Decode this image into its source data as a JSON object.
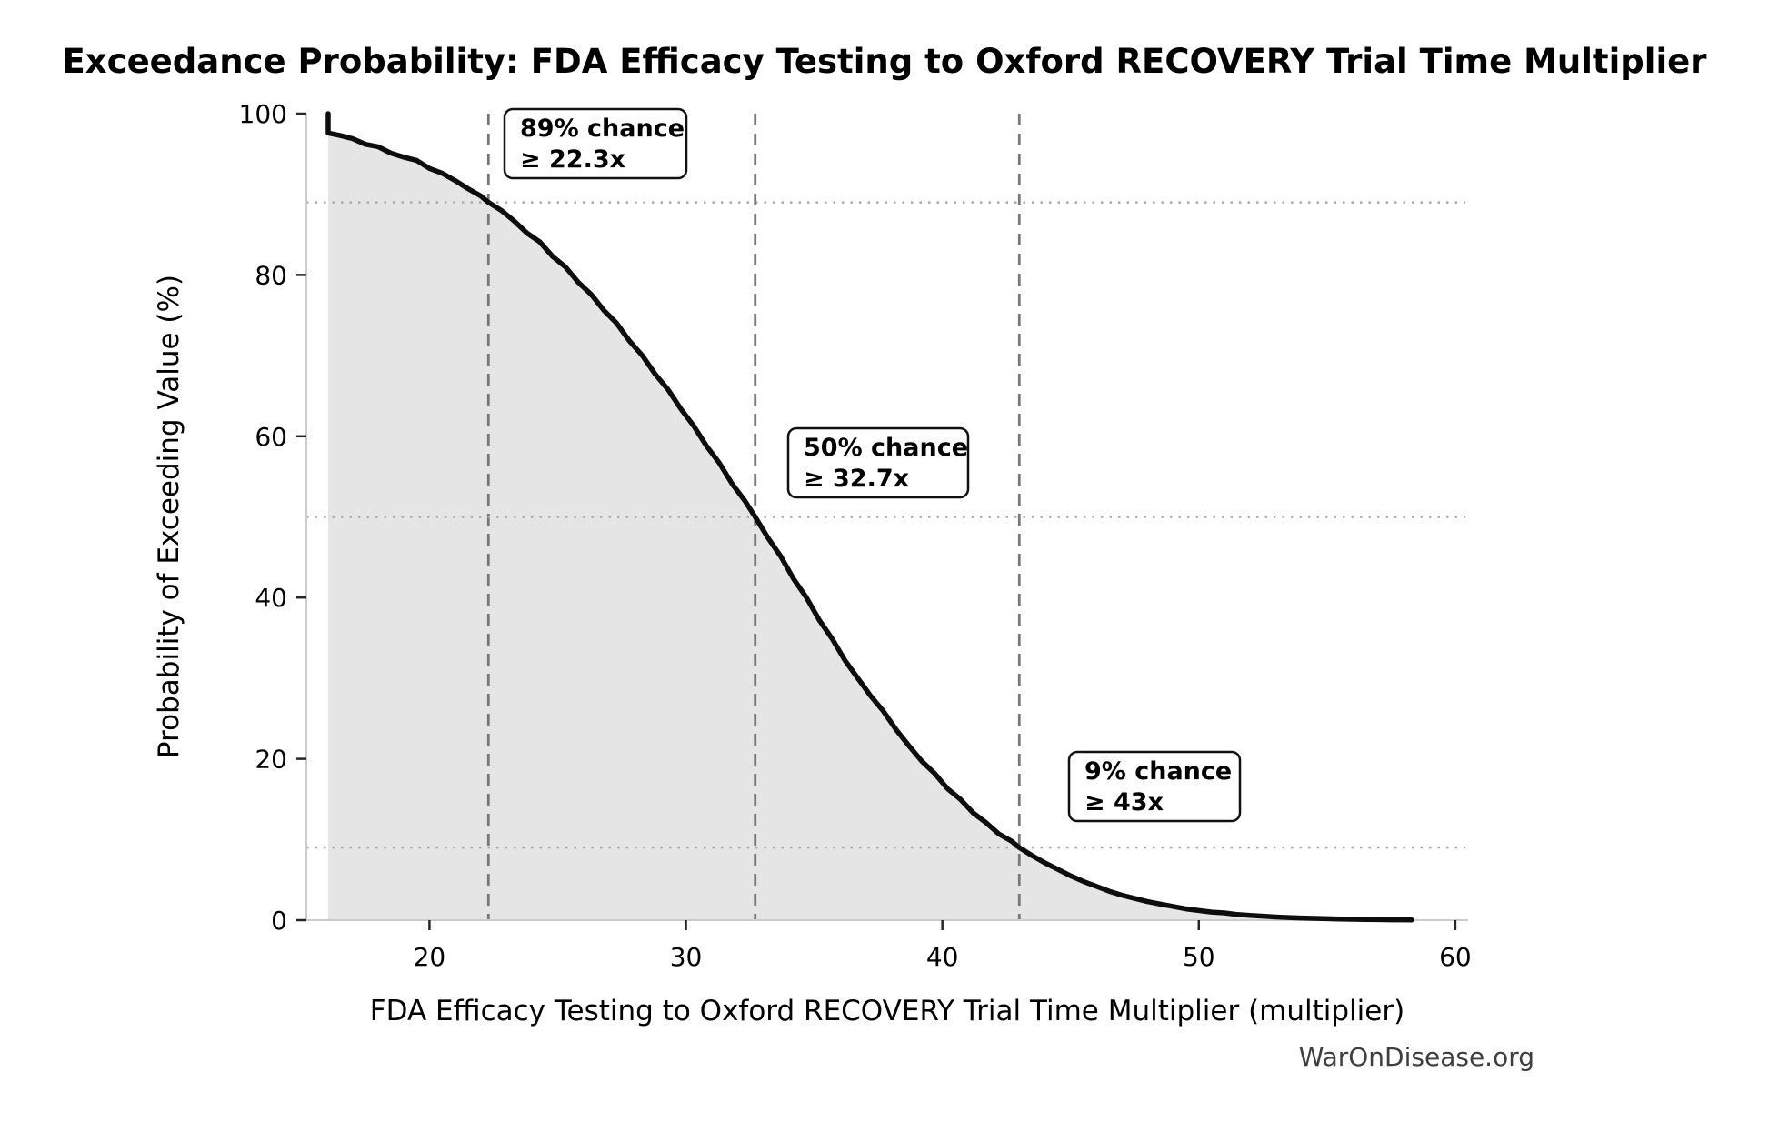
{
  "chart_data": {
    "type": "area",
    "title": "Exceedance Probability: FDA Efficacy Testing to Oxford RECOVERY Trial Time Multiplier",
    "xlabel": "FDA Efficacy Testing to Oxford RECOVERY Trial Time Multiplier (multiplier)",
    "ylabel": "Probability of Exceeding Value (%)",
    "watermark": "WarOnDisease.org",
    "xlim": [
      15.2,
      60.5
    ],
    "ylim": [
      0,
      100
    ],
    "x_ticks": [
      20,
      30,
      40,
      50,
      60
    ],
    "y_ticks": [
      0,
      20,
      40,
      60,
      80,
      100
    ],
    "legend": "none",
    "grid": {
      "horizontal": "dotted at annotation probabilities",
      "vertical": "dashed at annotation multipliers"
    },
    "colors": {
      "curve": "#0d0d0d",
      "fill": "#e5e5e5",
      "dashed_line": "#787878",
      "dotted_line": "#aaaaaa",
      "spine": "#cccccc",
      "tick_mark": "#262626",
      "annotation_border": "#111111",
      "watermark": "#3f3f3f"
    },
    "annotations": [
      {
        "line1": "89% chance",
        "line2": "≥ 22.3x",
        "probability_pct": 89,
        "multiplier": 22.3
      },
      {
        "line1": "50% chance",
        "line2": "≥ 32.7x",
        "probability_pct": 50,
        "multiplier": 32.7
      },
      {
        "line1": "9% chance",
        "line2": "≥ 43x",
        "probability_pct": 9,
        "multiplier": 43
      }
    ],
    "series": [
      {
        "name": "exceedance_curve",
        "points": [
          [
            16.05,
            100
          ],
          [
            16.05,
            97.6
          ],
          [
            16.5,
            97.3
          ],
          [
            17,
            96.9
          ],
          [
            17.5,
            96.2
          ],
          [
            18,
            95.9
          ],
          [
            18.5,
            95.1
          ],
          [
            19,
            94.6
          ],
          [
            19.5,
            94.2
          ],
          [
            20,
            93.2
          ],
          [
            20.5,
            92.6
          ],
          [
            21,
            91.7
          ],
          [
            21.5,
            90.7
          ],
          [
            22,
            89.8
          ],
          [
            22.3,
            89
          ],
          [
            22.8,
            88
          ],
          [
            23.3,
            86.7
          ],
          [
            23.8,
            85.2
          ],
          [
            24.3,
            84.1
          ],
          [
            24.8,
            82.3
          ],
          [
            25.3,
            81
          ],
          [
            25.8,
            79.1
          ],
          [
            26.3,
            77.6
          ],
          [
            26.8,
            75.6
          ],
          [
            27.3,
            74
          ],
          [
            27.8,
            71.8
          ],
          [
            28.3,
            70
          ],
          [
            28.8,
            67.7
          ],
          [
            29.3,
            65.8
          ],
          [
            29.8,
            63.4
          ],
          [
            30.3,
            61.3
          ],
          [
            30.8,
            58.8
          ],
          [
            31.3,
            56.7
          ],
          [
            31.8,
            54.1
          ],
          [
            32.3,
            52
          ],
          [
            32.7,
            50
          ],
          [
            33.2,
            47.4
          ],
          [
            33.7,
            45.1
          ],
          [
            34.2,
            42.3
          ],
          [
            34.7,
            40
          ],
          [
            35.2,
            37.2
          ],
          [
            35.7,
            34.9
          ],
          [
            36.2,
            32.2
          ],
          [
            36.7,
            30
          ],
          [
            37.2,
            27.8
          ],
          [
            37.7,
            25.9
          ],
          [
            38.2,
            23.6
          ],
          [
            38.7,
            21.6
          ],
          [
            39.2,
            19.7
          ],
          [
            39.7,
            18.2
          ],
          [
            40.2,
            16.3
          ],
          [
            40.7,
            15
          ],
          [
            41.2,
            13.3
          ],
          [
            41.7,
            12.1
          ],
          [
            42.2,
            10.7
          ],
          [
            42.7,
            9.8
          ],
          [
            43,
            9
          ],
          [
            43.5,
            8
          ],
          [
            44,
            7.1
          ],
          [
            44.5,
            6.3
          ],
          [
            45,
            5.5
          ],
          [
            45.5,
            4.8
          ],
          [
            46,
            4.2
          ],
          [
            46.5,
            3.6
          ],
          [
            47,
            3.1
          ],
          [
            47.5,
            2.7
          ],
          [
            48,
            2.3
          ],
          [
            48.5,
            2
          ],
          [
            49,
            1.7
          ],
          [
            49.5,
            1.4
          ],
          [
            50,
            1.2
          ],
          [
            50.5,
            1
          ],
          [
            51,
            0.9
          ],
          [
            51.5,
            0.7
          ],
          [
            52,
            0.6
          ],
          [
            52.5,
            0.5
          ],
          [
            53,
            0.4
          ],
          [
            53.5,
            0.33
          ],
          [
            54,
            0.27
          ],
          [
            54.5,
            0.22
          ],
          [
            55,
            0.18
          ],
          [
            55.5,
            0.14
          ],
          [
            56,
            0.11
          ],
          [
            56.5,
            0.09
          ],
          [
            57,
            0.07
          ],
          [
            57.5,
            0.05
          ],
          [
            58,
            0.04
          ],
          [
            58.3,
            0.03
          ]
        ]
      }
    ]
  }
}
